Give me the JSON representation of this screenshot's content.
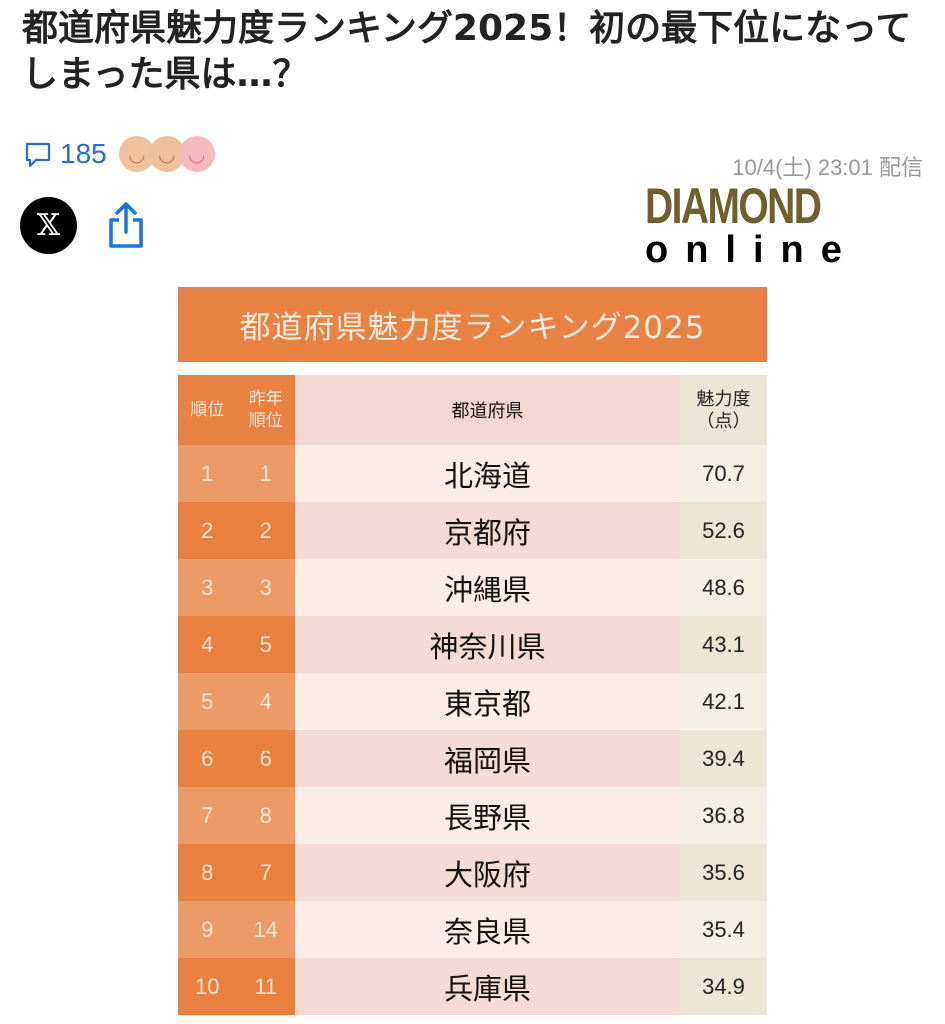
{
  "article": {
    "title": "都道府県魅力度ランキング2025！初の最下位になってしまった県は…？",
    "comment_count": "185",
    "date": "10/4(土) 23:01 配信",
    "publisher_logo": "DIAMOND online",
    "reactions": [
      "smile",
      "smile",
      "smile"
    ],
    "reaction_colors": [
      "#f1c19c",
      "#eebf9a",
      "#f4b9bd"
    ]
  },
  "share": {
    "x_label": "𝕏"
  },
  "ranking_table": {
    "title": "都道府県魅力度ランキング2025",
    "headers": {
      "rank": "順位",
      "prev_rank": "昨年\n順位",
      "prefecture": "都道府県",
      "score": "魅力度\n（点）"
    },
    "rows": [
      {
        "rank": "1",
        "prev": "1",
        "pref": "北海道",
        "score": "70.7"
      },
      {
        "rank": "2",
        "prev": "2",
        "pref": "京都府",
        "score": "52.6"
      },
      {
        "rank": "3",
        "prev": "3",
        "pref": "沖縄県",
        "score": "48.6"
      },
      {
        "rank": "4",
        "prev": "5",
        "pref": "神奈川県",
        "score": "43.1"
      },
      {
        "rank": "5",
        "prev": "4",
        "pref": "東京都",
        "score": "42.1"
      },
      {
        "rank": "6",
        "prev": "6",
        "pref": "福岡県",
        "score": "39.4"
      },
      {
        "rank": "7",
        "prev": "8",
        "pref": "長野県",
        "score": "36.8"
      },
      {
        "rank": "8",
        "prev": "7",
        "pref": "大阪府",
        "score": "35.6"
      },
      {
        "rank": "9",
        "prev": "14",
        "pref": "奈良県",
        "score": "35.4"
      },
      {
        "rank": "10",
        "prev": "11",
        "pref": "兵庫県",
        "score": "34.9"
      }
    ]
  }
}
